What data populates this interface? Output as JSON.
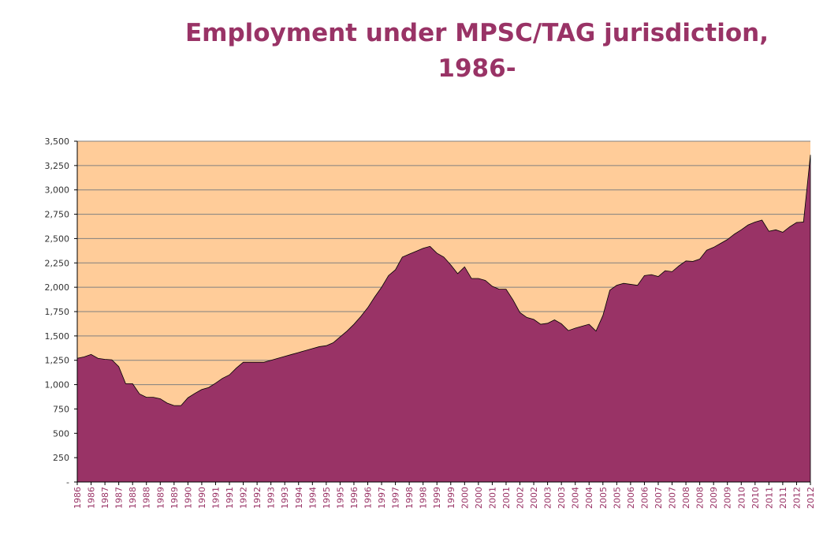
{
  "title_line1": "Employment under MPSC/TAG jurisdiction,",
  "title_line2": "1986-",
  "colors": {
    "plot_bg": "#FFCC99",
    "area": "#993366",
    "title": "#993366",
    "grid": "#808080"
  },
  "chart_data": {
    "type": "area",
    "title": "Employment under MPSC/TAG jurisdiction, 1986-",
    "xlabel": "",
    "ylabel": "",
    "ylim": [
      0,
      3500
    ],
    "grid": true,
    "legend": "none",
    "y_ticks": [
      "-",
      "250",
      "500",
      "750",
      "1,000",
      "1,250",
      "1,500",
      "1,750",
      "2,000",
      "2,250",
      "2,500",
      "2,750",
      "3,000",
      "3,250",
      "3,500"
    ],
    "x_tick_labels": [
      "1986",
      "1986",
      "1987",
      "1987",
      "1988",
      "1988",
      "1989",
      "1989",
      "1990",
      "1990",
      "1991",
      "1991",
      "1992",
      "1992",
      "1993",
      "1993",
      "1994",
      "1994",
      "1995",
      "1995",
      "1996",
      "1996",
      "1997",
      "1997",
      "1998",
      "1998",
      "1999",
      "1999",
      "2000",
      "2000",
      "2001",
      "2001",
      "2002",
      "2002",
      "2003",
      "2003",
      "2004",
      "2004",
      "2005",
      "2005",
      "2006",
      "2006",
      "2007",
      "2007",
      "2008",
      "2008",
      "2009",
      "2009",
      "2010",
      "2010",
      "2011",
      "2011",
      "2012",
      "2012"
    ],
    "values": [
      1270,
      1285,
      1310,
      1270,
      1260,
      1255,
      1185,
      1010,
      1010,
      905,
      870,
      870,
      855,
      810,
      785,
      785,
      865,
      910,
      950,
      970,
      1015,
      1065,
      1100,
      1170,
      1230,
      1230,
      1230,
      1230,
      1250,
      1270,
      1290,
      1310,
      1330,
      1350,
      1370,
      1390,
      1400,
      1430,
      1490,
      1550,
      1620,
      1700,
      1790,
      1900,
      2000,
      2120,
      2180,
      2310,
      2340,
      2370,
      2400,
      2420,
      2350,
      2310,
      2230,
      2140,
      2210,
      2090,
      2090,
      2070,
      2010,
      1980,
      1980,
      1870,
      1740,
      1690,
      1670,
      1620,
      1630,
      1665,
      1625,
      1555,
      1580,
      1600,
      1620,
      1550,
      1710,
      1970,
      2020,
      2040,
      2030,
      2020,
      2120,
      2130,
      2110,
      2170,
      2160,
      2220,
      2270,
      2265,
      2290,
      2380,
      2410,
      2450,
      2490,
      2545,
      2590,
      2640,
      2670,
      2690,
      2575,
      2590,
      2565,
      2620,
      2665,
      2670,
      3360
    ]
  }
}
